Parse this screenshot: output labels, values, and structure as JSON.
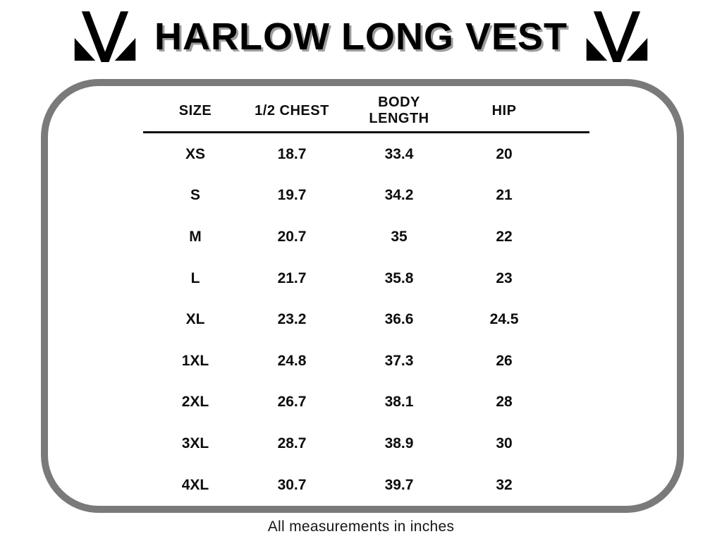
{
  "header": {
    "title": "HARLOW LONG VEST",
    "left_logo_icon": "m-brand-mark",
    "right_logo_icon": "m-brand-mark"
  },
  "table": {
    "headers": [
      "SIZE",
      "1/2 CHEST",
      "BODY LENGTH",
      "HIP"
    ],
    "columns": [
      "size",
      "half_chest",
      "body_length",
      "hip"
    ],
    "rows": [
      {
        "size": "XS",
        "half_chest": "18.7",
        "body_length": "33.4",
        "hip": "20"
      },
      {
        "size": "S",
        "half_chest": "19.7",
        "body_length": "34.2",
        "hip": "21"
      },
      {
        "size": "M",
        "half_chest": "20.7",
        "body_length": "35",
        "hip": "22"
      },
      {
        "size": "L",
        "half_chest": "21.7",
        "body_length": "35.8",
        "hip": "23"
      },
      {
        "size": "XL",
        "half_chest": "23.2",
        "body_length": "36.6",
        "hip": "24.5"
      },
      {
        "size": "1XL",
        "half_chest": "24.8",
        "body_length": "37.3",
        "hip": "26"
      },
      {
        "size": "2XL",
        "half_chest": "26.7",
        "body_length": "38.1",
        "hip": "28"
      },
      {
        "size": "3XL",
        "half_chest": "28.7",
        "body_length": "38.9",
        "hip": "30"
      },
      {
        "size": "4XL",
        "half_chest": "30.7",
        "body_length": "39.7",
        "hip": "32"
      }
    ]
  },
  "footnote": "All measurements in inches",
  "colors": {
    "background": "#ffffff",
    "frame_border": "#7a7a7a",
    "title_shadow": "#9d9d9d",
    "text": "#0d0d0d"
  }
}
